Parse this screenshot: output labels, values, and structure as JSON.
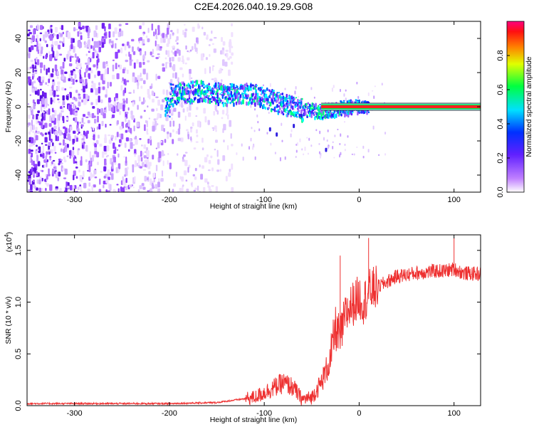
{
  "title": "C2E4.2026.040.19.29.G08",
  "chart_data": [
    {
      "type": "heatmap",
      "xlabel": "Height of straight line (km)",
      "ylabel": "Frequency (Hz)",
      "xlim": [
        -350,
        128
      ],
      "ylim": [
        -50,
        50
      ],
      "xticks": [
        -300,
        -200,
        -100,
        0,
        100
      ],
      "yticks": [
        -40,
        -20,
        0,
        20,
        40
      ],
      "colorbar": {
        "label": "Normalized spectral amplitude",
        "range": [
          0,
          1
        ],
        "ticks": [
          "0.0",
          "0.2",
          "0.4",
          "0.6",
          "0.8"
        ],
        "colors": [
          "#ffffff",
          "#a040ff",
          "#2020ff",
          "#00ffff",
          "#00ff00",
          "#ffff00",
          "#ff0000",
          "#ff00a0"
        ]
      },
      "features": {
        "noise_region_x": [
          -350,
          -135
        ],
        "signal_track": [
          {
            "x": -200,
            "y": 8
          },
          {
            "x": -170,
            "y": 10
          },
          {
            "x": -140,
            "y": 8
          },
          {
            "x": -120,
            "y": 9
          },
          {
            "x": -100,
            "y": 6
          },
          {
            "x": -80,
            "y": 2
          },
          {
            "x": -60,
            "y": -1
          },
          {
            "x": -40,
            "y": -2
          },
          {
            "x": -20,
            "y": 0
          },
          {
            "x": 0,
            "y": 1
          },
          {
            "x": 50,
            "y": 0
          },
          {
            "x": 128,
            "y": 0
          }
        ]
      }
    },
    {
      "type": "line",
      "xlabel": "Height of straight line (km)",
      "ylabel": "SNR (10 * v/v)",
      "yscale_label": "(x10",
      "yscale_exp": "4",
      "yscale_close": ")",
      "xlim": [
        -350,
        128
      ],
      "ylim": [
        0,
        1.65
      ],
      "xticks": [
        -300,
        -200,
        -100,
        0,
        100
      ],
      "yticks": [
        "0.0",
        "0.5",
        "1.0",
        "1.5"
      ],
      "color": "#ee3030",
      "series": [
        {
          "x": [
            -350,
            -200,
            -150,
            -110,
            -95,
            -80,
            -70,
            -60,
            -50,
            -40,
            -30,
            -25,
            -20,
            -15,
            -10,
            -5,
            0,
            5,
            10,
            20,
            30,
            40,
            60,
            80,
            90,
            100,
            110,
            128
          ],
          "values": [
            0.02,
            0.02,
            0.03,
            0.08,
            0.15,
            0.22,
            0.18,
            0.06,
            0.08,
            0.22,
            0.45,
            0.75,
            0.65,
            0.85,
            0.95,
            1.0,
            1.05,
            1.0,
            1.1,
            1.15,
            1.2,
            1.25,
            1.28,
            1.3,
            1.3,
            1.32,
            1.28,
            1.27
          ]
        }
      ],
      "spikes": [
        {
          "x": -20,
          "y": 1.45
        },
        {
          "x": 10,
          "y": 1.62
        },
        {
          "x": 100,
          "y": 1.62
        }
      ]
    }
  ]
}
